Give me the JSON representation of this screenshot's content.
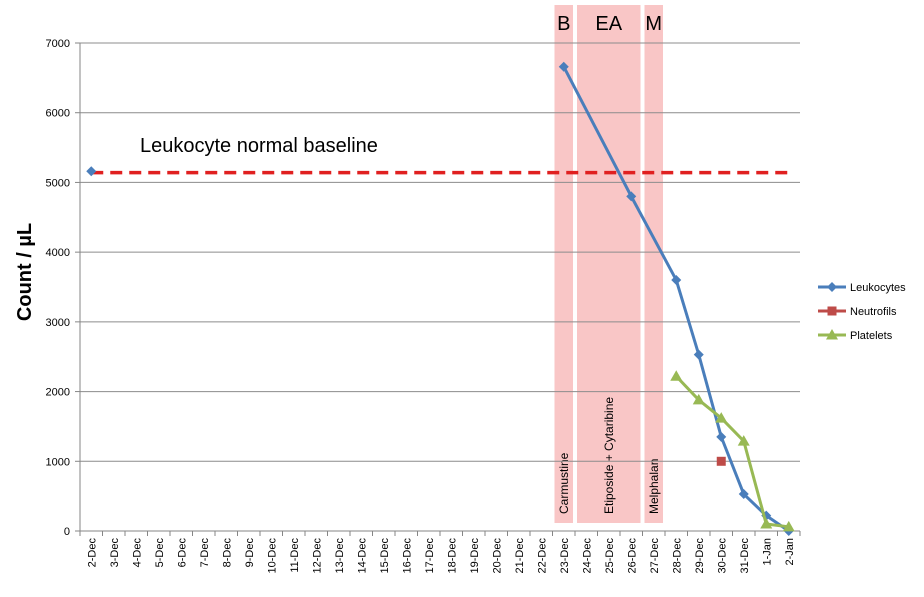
{
  "chart_data": {
    "type": "line",
    "ylabel": "Count / µL",
    "ylim": [
      0,
      7000
    ],
    "yticks": [
      0,
      1000,
      2000,
      3000,
      4000,
      5000,
      6000,
      7000
    ],
    "grid": true,
    "legend_position": "right",
    "categories": [
      "2-Dec",
      "3-Dec",
      "4-Dec",
      "5-Dec",
      "6-Dec",
      "7-Dec",
      "8-Dec",
      "9-Dec",
      "10-Dec",
      "11-Dec",
      "12-Dec",
      "13-Dec",
      "14-Dec",
      "15-Dec",
      "16-Dec",
      "17-Dec",
      "18-Dec",
      "19-Dec",
      "20-Dec",
      "21-Dec",
      "22-Dec",
      "23-Dec",
      "24-Dec",
      "25-Dec",
      "26-Dec",
      "27-Dec",
      "28-Dec",
      "29-Dec",
      "30-Dec",
      "31-Dec",
      "1-Jan",
      "2-Jan"
    ],
    "series": [
      {
        "name": "Leukocytes",
        "color": "#4a7ebb",
        "marker": "diamond",
        "points": [
          {
            "x": "2-Dec",
            "y": 5160,
            "connected": false
          },
          {
            "x": "23-Dec",
            "y": 6660
          },
          {
            "x": "26-Dec",
            "y": 4800
          },
          {
            "x": "28-Dec",
            "y": 3600
          },
          {
            "x": "29-Dec",
            "y": 2530
          },
          {
            "x": "30-Dec",
            "y": 1350
          },
          {
            "x": "31-Dec",
            "y": 530
          },
          {
            "x": "1-Jan",
            "y": 220
          },
          {
            "x": "2-Jan",
            "y": 0
          }
        ]
      },
      {
        "name": "Neutrofils",
        "color": "#be4b48",
        "marker": "square",
        "points": [
          {
            "x": "30-Dec",
            "y": 1000
          }
        ]
      },
      {
        "name": "Platelets",
        "color": "#98b954",
        "marker": "triangle",
        "points": [
          {
            "x": "28-Dec",
            "y": 2220
          },
          {
            "x": "29-Dec",
            "y": 1880
          },
          {
            "x": "30-Dec",
            "y": 1620
          },
          {
            "x": "31-Dec",
            "y": 1290
          },
          {
            "x": "1-Jan",
            "y": 100
          },
          {
            "x": "2-Jan",
            "y": 60
          }
        ]
      }
    ],
    "baseline": {
      "label": "Leukocyte normal baseline",
      "y": 5140,
      "color": "#e02020",
      "from": "2-Dec",
      "to": "2-Jan"
    },
    "bands": [
      {
        "label": "B",
        "drug": "Carmustine",
        "from": "23-Dec",
        "to": "23-Dec",
        "color": "#f9c6c6"
      },
      {
        "label": "EA",
        "drug": "Etiposide + Cytaribine",
        "from": "24-Dec",
        "to": "26-Dec",
        "color": "#f9c6c6"
      },
      {
        "label": "M",
        "drug": "Melphalan",
        "from": "27-Dec",
        "to": "27-Dec",
        "color": "#f9c6c6"
      }
    ]
  }
}
